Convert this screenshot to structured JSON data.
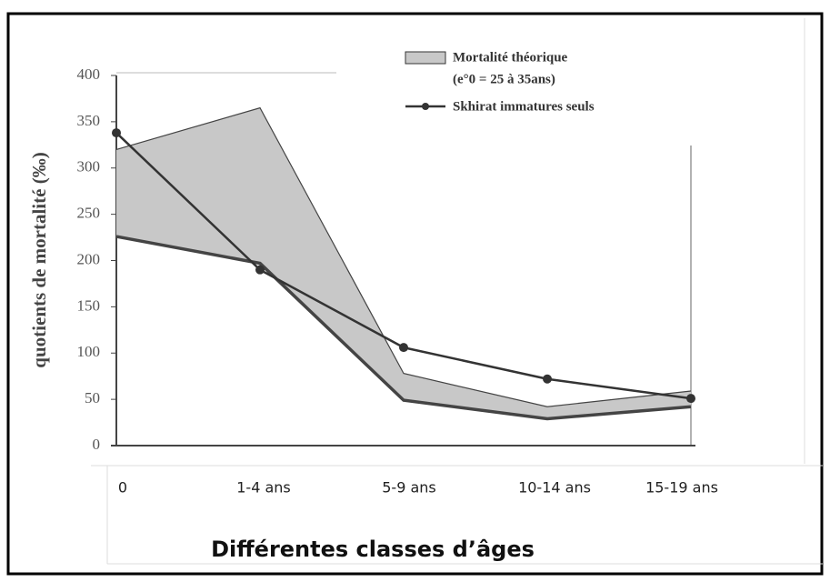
{
  "chart_data": {
    "type": "band-line",
    "y_label": "quotients de mortalité (‰)",
    "x_label": "Différentes classes d’âges",
    "categories": [
      "0",
      "1-4 ans",
      "5-9 ans",
      "10-14 ans",
      "15-19 ans"
    ],
    "ylim": [
      0,
      400
    ],
    "yticks": [
      0,
      50,
      100,
      150,
      200,
      250,
      300,
      350,
      400
    ],
    "series": [
      {
        "name": "Mortalité théorique",
        "legend_note": "(e°0 = 25 à 35ans)",
        "color": "#c8c8c8",
        "upper": [
          320,
          365,
          78,
          42,
          59
        ],
        "lower": [
          226,
          197,
          49,
          29,
          42
        ]
      },
      {
        "name": "Skhirat immatures seuls",
        "color": "#333333",
        "values": [
          338,
          190,
          106,
          72,
          51
        ]
      }
    ]
  }
}
